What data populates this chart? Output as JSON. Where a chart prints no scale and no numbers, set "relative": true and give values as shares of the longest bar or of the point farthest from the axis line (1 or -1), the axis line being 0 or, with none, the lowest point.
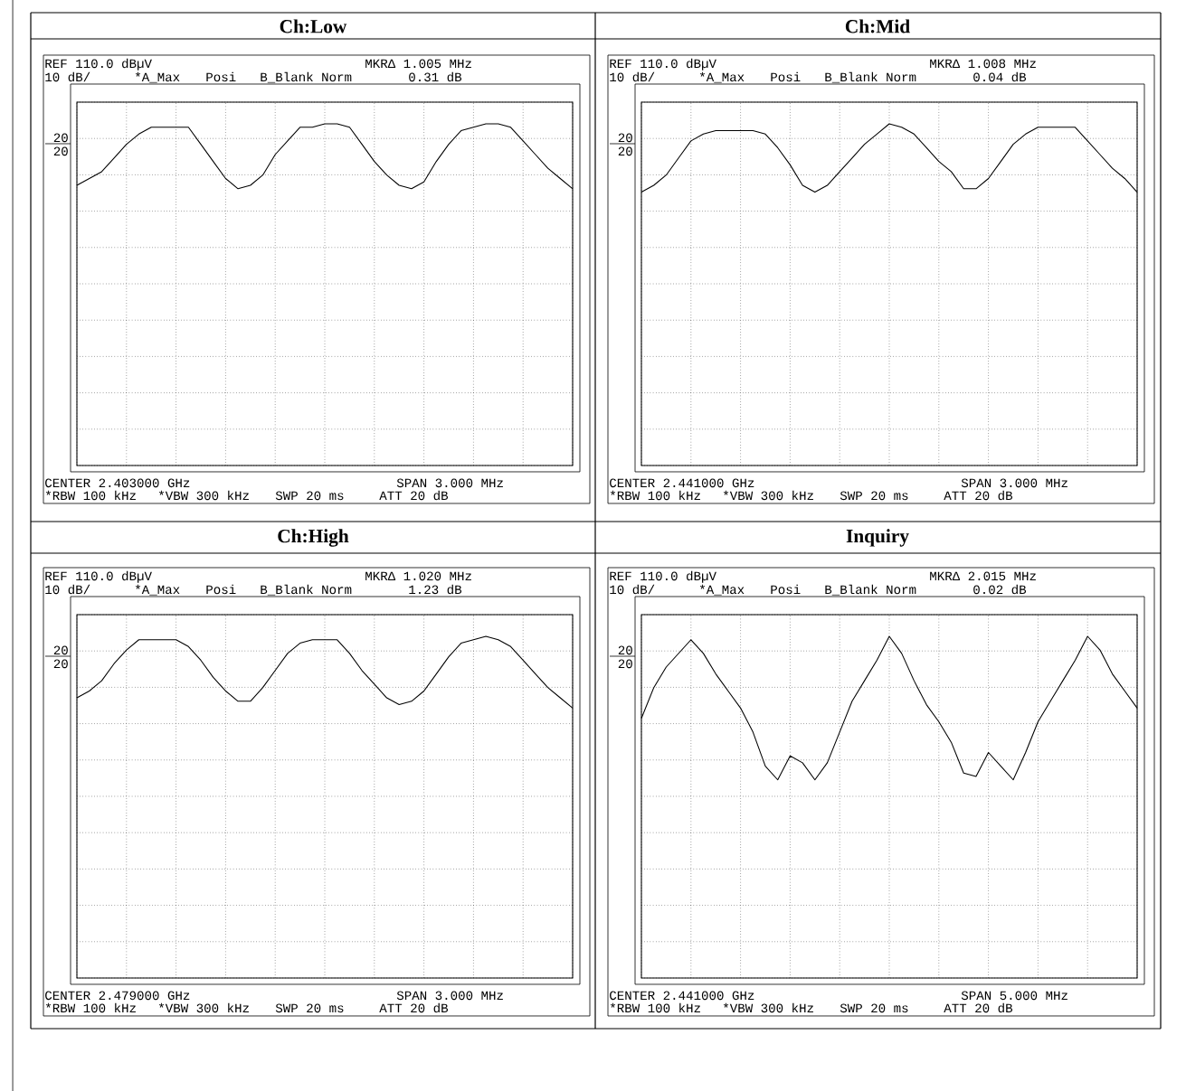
{
  "chart_data": [
    {
      "type": "line",
      "title": "Ch:Low",
      "relative": true,
      "grid": true,
      "tick_labels": false,
      "color": "#000000",
      "annotations": [
        "REF 110.0 dBµV",
        "MKRΔ 1.005 MHz",
        "10 dB/",
        "*A_Max",
        "Posi",
        "B_Blank Norm",
        "0.31 dB",
        "CENTER 2.403000 GHz",
        "SPAN 3.000 MHz",
        "*RBW 100 kHz",
        "*VBW 300 kHz",
        "SWP 20 ms",
        "ATT 20 dB",
        "20",
        "20"
      ],
      "categories": [
        null,
        null,
        null,
        null,
        null,
        null,
        null,
        null,
        null,
        null,
        null,
        null,
        null,
        null,
        null,
        null,
        null,
        null,
        null,
        null,
        null,
        null,
        null,
        null,
        null,
        null,
        null,
        null,
        null,
        null,
        null,
        null,
        null,
        null,
        null,
        null,
        null,
        null,
        null,
        null,
        null
      ],
      "values": [
        0.82,
        0.84,
        0.86,
        0.9,
        0.94,
        0.97,
        0.99,
        0.99,
        0.99,
        0.99,
        0.94,
        0.89,
        0.84,
        0.81,
        0.82,
        0.85,
        0.91,
        0.95,
        0.99,
        0.99,
        1.0,
        1.0,
        0.99,
        0.94,
        0.89,
        0.85,
        0.82,
        0.81,
        0.83,
        0.89,
        0.94,
        0.98,
        0.99,
        1.0,
        1.0,
        0.99,
        0.95,
        0.91,
        0.87,
        0.84,
        0.81
      ]
    },
    {
      "type": "line",
      "title": "Ch:Mid",
      "relative": true,
      "grid": true,
      "tick_labels": false,
      "color": "#000000",
      "annotations": [
        "REF 110.0 dBµV",
        "MKRΔ 1.008 MHz",
        "10 dB/",
        "*A_Max",
        "Posi",
        "B_Blank Norm",
        "0.04 dB",
        "CENTER 2.441000 GHz",
        "SPAN 3.000 MHz",
        "*RBW 100 kHz",
        "*VBW 300 kHz",
        "SWP 20 ms",
        "ATT 20 dB",
        "20",
        "20"
      ],
      "categories": [
        null,
        null,
        null,
        null,
        null,
        null,
        null,
        null,
        null,
        null,
        null,
        null,
        null,
        null,
        null,
        null,
        null,
        null,
        null,
        null,
        null,
        null,
        null,
        null,
        null,
        null,
        null,
        null,
        null,
        null,
        null,
        null,
        null,
        null,
        null,
        null,
        null,
        null,
        null,
        null,
        null
      ],
      "values": [
        0.8,
        0.82,
        0.85,
        0.9,
        0.95,
        0.97,
        0.98,
        0.98,
        0.98,
        0.98,
        0.97,
        0.93,
        0.88,
        0.82,
        0.8,
        0.82,
        0.86,
        0.9,
        0.94,
        0.97,
        1.0,
        0.99,
        0.97,
        0.93,
        0.89,
        0.86,
        0.81,
        0.81,
        0.84,
        0.89,
        0.94,
        0.97,
        0.99,
        0.99,
        0.99,
        0.99,
        0.95,
        0.91,
        0.87,
        0.84,
        0.8
      ]
    },
    {
      "type": "line",
      "title": "Ch:High",
      "relative": true,
      "grid": true,
      "tick_labels": false,
      "color": "#000000",
      "annotations": [
        "REF 110.0 dBµV",
        "MKRΔ 1.020 MHz",
        "10 dB/",
        "*A_Max",
        "Posi",
        "B_Blank Norm",
        "1.23 dB",
        "CENTER 2.479000 GHz",
        "SPAN 3.000 MHz",
        "*RBW 100 kHz",
        "*VBW 300 kHz",
        "SWP 20 ms",
        "ATT 20 dB",
        "20",
        "20"
      ],
      "categories": [
        null,
        null,
        null,
        null,
        null,
        null,
        null,
        null,
        null,
        null,
        null,
        null,
        null,
        null,
        null,
        null,
        null,
        null,
        null,
        null,
        null,
        null,
        null,
        null,
        null,
        null,
        null,
        null,
        null,
        null,
        null,
        null,
        null,
        null,
        null,
        null,
        null,
        null,
        null,
        null,
        null
      ],
      "values": [
        0.82,
        0.84,
        0.87,
        0.92,
        0.96,
        0.99,
        0.99,
        0.99,
        0.99,
        0.97,
        0.93,
        0.88,
        0.84,
        0.81,
        0.81,
        0.85,
        0.9,
        0.95,
        0.98,
        0.99,
        0.99,
        0.99,
        0.95,
        0.9,
        0.86,
        0.82,
        0.8,
        0.81,
        0.84,
        0.89,
        0.94,
        0.98,
        0.99,
        1.0,
        0.99,
        0.97,
        0.93,
        0.89,
        0.85,
        0.82,
        0.79
      ]
    },
    {
      "type": "line",
      "title": "Inquiry",
      "relative": true,
      "grid": true,
      "tick_labels": false,
      "color": "#000000",
      "annotations": [
        "REF 110.0 dBµV",
        "MKRΔ 2.015 MHz",
        "10 dB/",
        "*A_Max",
        "Posi",
        "B_Blank Norm",
        "0.02 dB",
        "CENTER 2.441000 GHz",
        "SPAN 5.000 MHz",
        "*RBW 100 kHz",
        "*VBW 300 kHz",
        "SWP 20 ms",
        "ATT 20 dB",
        "20",
        "20"
      ],
      "categories": [
        null,
        null,
        null,
        null,
        null,
        null,
        null,
        null,
        null,
        null,
        null,
        null,
        null,
        null,
        null,
        null,
        null,
        null,
        null,
        null,
        null,
        null,
        null,
        null,
        null,
        null,
        null,
        null,
        null,
        null,
        null,
        null,
        null,
        null,
        null,
        null,
        null,
        null,
        null,
        null,
        null
      ],
      "values": [
        0.76,
        0.85,
        0.91,
        0.95,
        0.99,
        0.95,
        0.89,
        0.84,
        0.79,
        0.72,
        0.62,
        0.58,
        0.65,
        0.63,
        0.58,
        0.63,
        0.72,
        0.81,
        0.87,
        0.93,
        1.0,
        0.95,
        0.87,
        0.8,
        0.75,
        0.69,
        0.6,
        0.59,
        0.66,
        0.62,
        0.58,
        0.66,
        0.75,
        0.81,
        0.87,
        0.93,
        1.0,
        0.96,
        0.89,
        0.84,
        0.79
      ]
    }
  ]
}
